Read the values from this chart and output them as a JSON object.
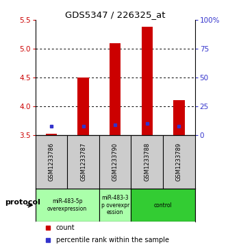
{
  "title": "GDS5347 / 226325_at",
  "samples": [
    "GSM1233786",
    "GSM1233787",
    "GSM1233790",
    "GSM1233788",
    "GSM1233789"
  ],
  "red_values": [
    3.52,
    4.5,
    5.1,
    5.38,
    4.1
  ],
  "blue_values": [
    3.65,
    3.65,
    3.68,
    3.7,
    3.65
  ],
  "y_min": 3.5,
  "y_max": 5.5,
  "y_ticks": [
    3.5,
    4.0,
    4.5,
    5.0,
    5.5
  ],
  "right_y_ticks": [
    0,
    25,
    50,
    75,
    100
  ],
  "right_y_labels": [
    "0",
    "25",
    "50",
    "75",
    "100%"
  ],
  "bar_color": "#cc0000",
  "dot_color": "#3333cc",
  "bg_color": "#ffffff",
  "plot_bg": "#ffffff",
  "sample_bg": "#cccccc",
  "proto_light_green": "#aaffaa",
  "proto_dark_green": "#33cc33",
  "protocol_label": "protocol",
  "legend_count": "count",
  "legend_percentile": "percentile rank within the sample",
  "left_axis_color": "#cc0000",
  "right_axis_color": "#3333cc",
  "bar_width": 0.35
}
